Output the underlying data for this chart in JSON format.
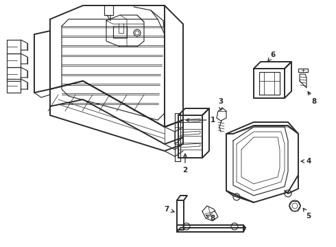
{
  "bg": "#ffffff",
  "lc": "#2a2a2a",
  "lw_main": 1.4,
  "lw_detail": 0.85,
  "lw_thin": 0.55,
  "figsize": [
    4.9,
    3.6
  ],
  "dpi": 100
}
